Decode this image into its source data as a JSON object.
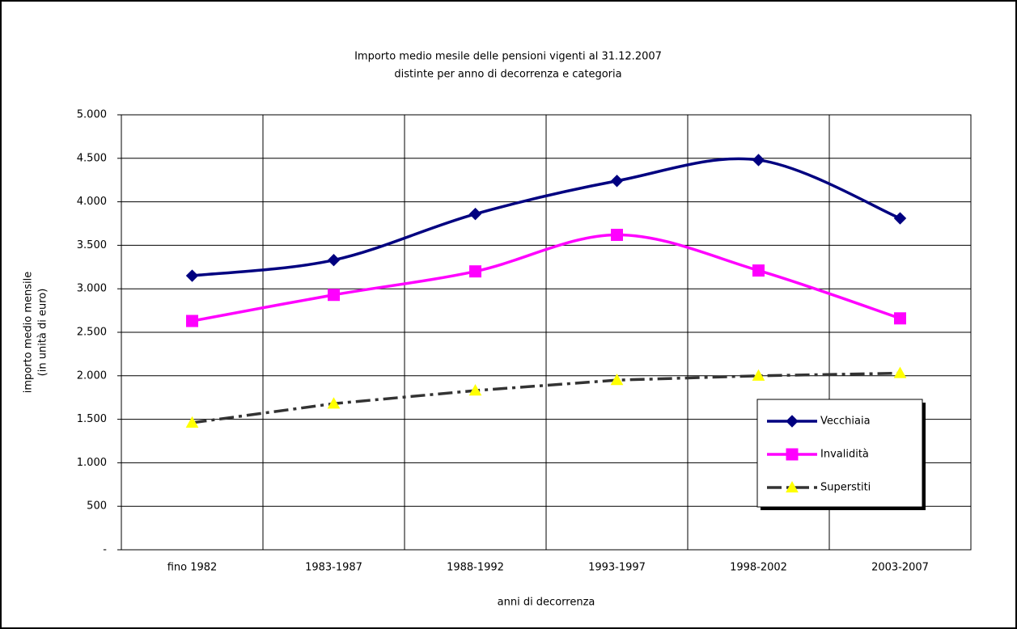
{
  "chart_data": {
    "type": "line",
    "title": [
      "Importo medio mesile delle pensioni vigenti al 31.12.2007",
      "distinte per anno di decorrenza e categoria"
    ],
    "x_label": "anni di decorrenza",
    "y_label": [
      "importo medio mensile",
      "(in unità di euro)"
    ],
    "categories": [
      "fino 1982",
      "1983-1987",
      "1988-1992",
      "1993-1997",
      "1998-2002",
      "2003-2007"
    ],
    "series": [
      {
        "name": "Vecchiaia",
        "color": "#000080",
        "marker": "diamond",
        "marker_color": "#000080",
        "smooth": true,
        "dash": "solid",
        "values": [
          3150,
          3330,
          3860,
          4240,
          4480,
          3810
        ]
      },
      {
        "name": "Invalidità",
        "color": "#ff00ff",
        "marker": "square",
        "marker_color": "#ff00ff",
        "smooth": true,
        "dash": "solid",
        "values": [
          2630,
          2930,
          3200,
          3620,
          3210,
          2660
        ]
      },
      {
        "name": "Superstiti",
        "color": "#333333",
        "marker": "triangle",
        "marker_color": "#ffff00",
        "smooth": false,
        "dash": "dashdot",
        "values": [
          1460,
          1680,
          1830,
          1950,
          2000,
          2030
        ]
      }
    ],
    "ylim": [
      0,
      5000
    ],
    "yticks": [
      {
        "value": 0,
        "label": "-"
      },
      500,
      {
        "value": 1000,
        "label": "1.000"
      },
      {
        "value": 1500,
        "label": "1.500"
      },
      {
        "value": 2000,
        "label": "2.000"
      },
      {
        "value": 2500,
        "label": "2.500"
      },
      {
        "value": 3000,
        "label": "3.000"
      },
      {
        "value": 3500,
        "label": "3.500"
      },
      {
        "value": 4000,
        "label": "4.000"
      },
      {
        "value": 4500,
        "label": "4.500"
      },
      {
        "value": 5000,
        "label": "5.000"
      }
    ],
    "grid": true,
    "legend": "lower right"
  }
}
